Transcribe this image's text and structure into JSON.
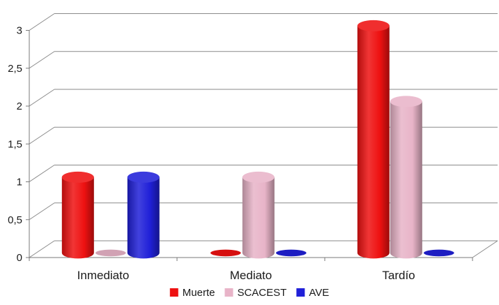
{
  "chart_data": {
    "type": "bar",
    "style": "3d-cylinder",
    "categories": [
      "Inmediato",
      "Mediato",
      "Tardío"
    ],
    "series": [
      {
        "name": "Muerte",
        "values": [
          1,
          0,
          3
        ],
        "color": "#ee1111"
      },
      {
        "name": "SCACEST",
        "values": [
          0,
          1,
          2
        ],
        "color": "#e8b4c8"
      },
      {
        "name": "AVE",
        "values": [
          1,
          0,
          0
        ],
        "color": "#2020d8"
      }
    ],
    "ylim": [
      0,
      3
    ],
    "yticks": [
      "0",
      "0,5",
      "1",
      "1,5",
      "2",
      "2,5",
      "3"
    ],
    "grid": true,
    "legend_position": "bottom"
  }
}
